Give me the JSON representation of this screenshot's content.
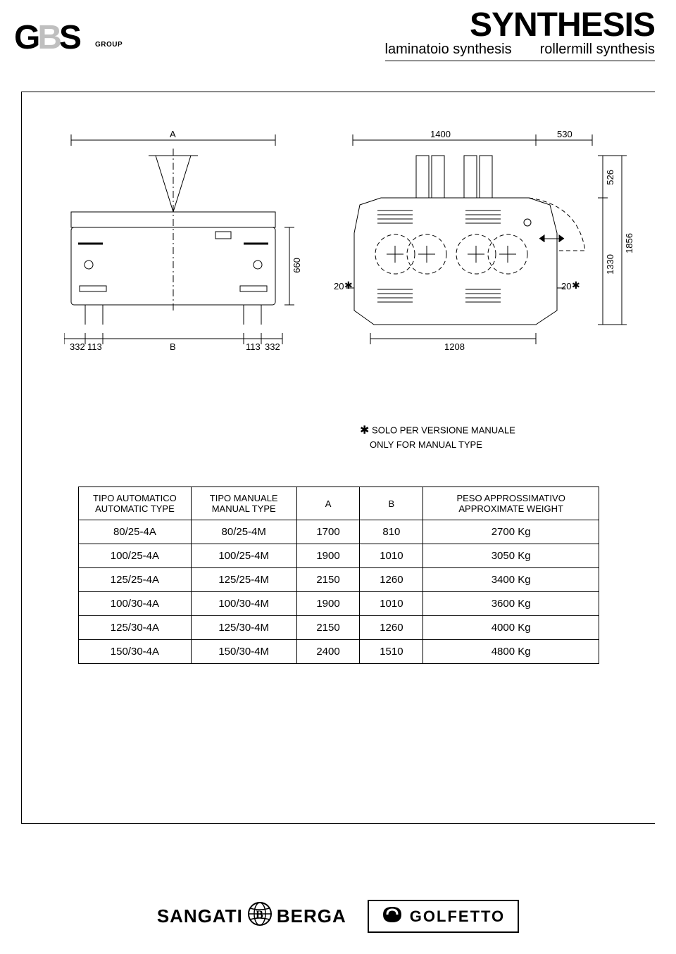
{
  "header": {
    "logo_letters": {
      "g": "G",
      "b": "B",
      "s": "S"
    },
    "group_label": "GROUP",
    "title": "SYNTHESIS",
    "subtitle_left": "laminatoio synthesis",
    "subtitle_right": "rollermill synthesis"
  },
  "diagram": {
    "front": {
      "top_label": "A",
      "bottom_dims": [
        "332",
        "113",
        "B",
        "113",
        "332"
      ],
      "right_dim": "660"
    },
    "side": {
      "top_dims": [
        "1400",
        "530"
      ],
      "right_dims": [
        "526",
        "1330",
        "1856"
      ],
      "bottom_dim": "1208",
      "ast_left": "20",
      "ast_right": "20",
      "ast_symbol": "✱"
    }
  },
  "note": {
    "symbol": "✱",
    "line1": "SOLO PER VERSIONE MANUALE",
    "line2": "ONLY FOR MANUAL TYPE"
  },
  "table": {
    "headers": {
      "col1_a": "TIPO AUTOMATICO",
      "col1_b": "AUTOMATIC TYPE",
      "col2_a": "TIPO MANUALE",
      "col2_b": "MANUAL TYPE",
      "col3": "A",
      "col4": "B",
      "col5_a": "PESO APPROSSIMATIVO",
      "col5_b": "APPROXIMATE WEIGHT"
    },
    "rows": [
      {
        "c1": "80/25-4A",
        "c2": "80/25-4M",
        "c3": "1700",
        "c4": "810",
        "c5": "2700 Kg"
      },
      {
        "c1": "100/25-4A",
        "c2": "100/25-4M",
        "c3": "1900",
        "c4": "1010",
        "c5": "3050 Kg"
      },
      {
        "c1": "125/25-4A",
        "c2": "125/25-4M",
        "c3": "2150",
        "c4": "1260",
        "c5": "3400 Kg"
      },
      {
        "c1": "100/30-4A",
        "c2": "100/30-4M",
        "c3": "1900",
        "c4": "1010",
        "c5": "3600 Kg"
      },
      {
        "c1": "125/30-4A",
        "c2": "125/30-4M",
        "c3": "2150",
        "c4": "1260",
        "c5": "4000 Kg"
      },
      {
        "c1": "150/30-4A",
        "c2": "150/30-4M",
        "c3": "2400",
        "c4": "1510",
        "c5": "4800 Kg"
      }
    ],
    "col_widths": [
      "160",
      "150",
      "90",
      "90",
      "250"
    ]
  },
  "footer": {
    "sangati_left": "SANGATI",
    "sangati_right": "BERGA",
    "golfetto": "GOLFETTO"
  },
  "colors": {
    "text": "#000000",
    "bg": "#ffffff",
    "logo_gray": "#bfbfbf",
    "line": "#000000"
  }
}
